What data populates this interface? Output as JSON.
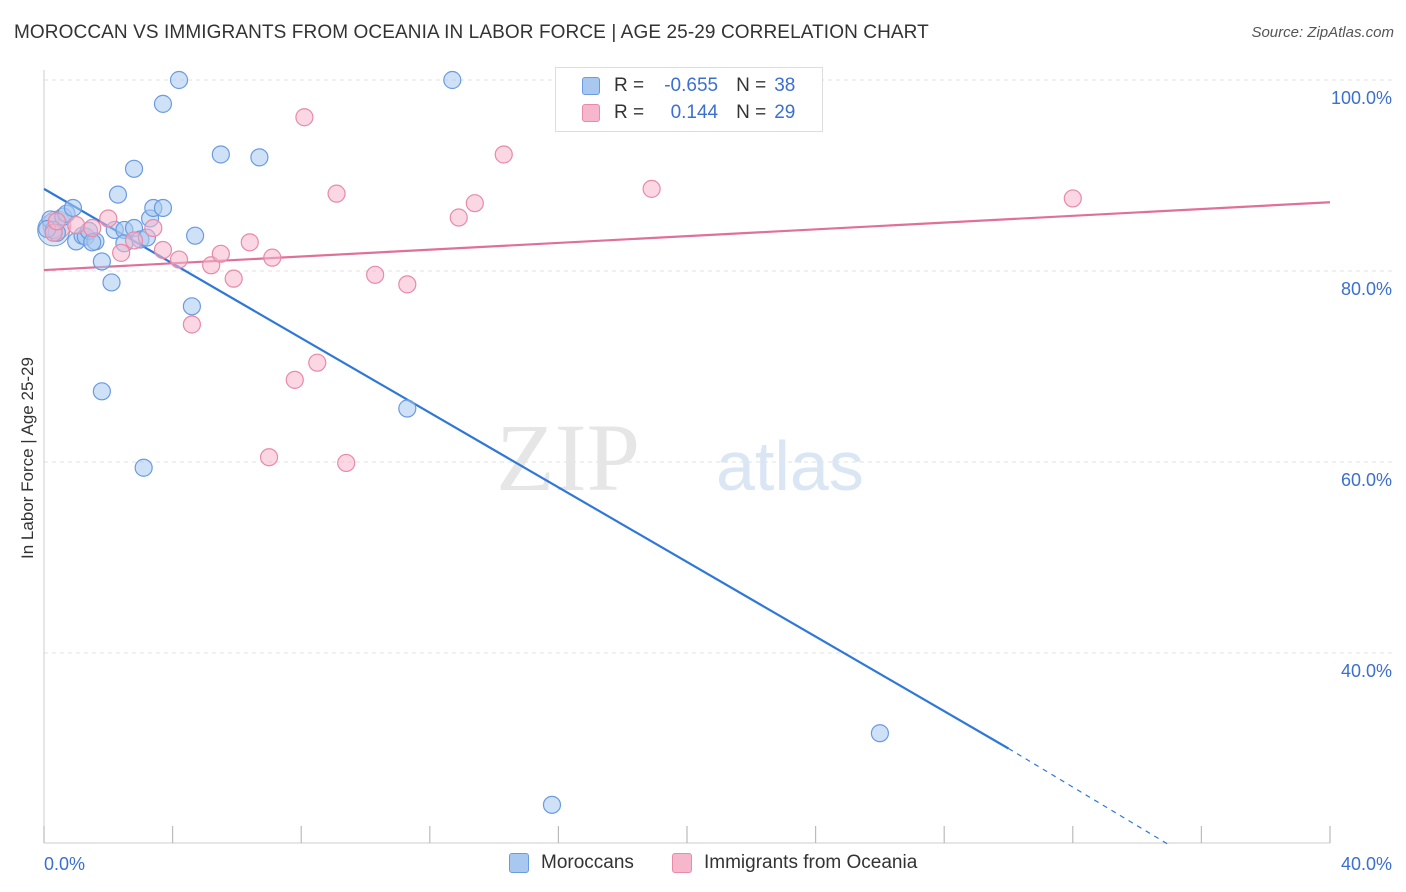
{
  "title": "MOROCCAN VS IMMIGRANTS FROM OCEANIA IN LABOR FORCE | AGE 25-29 CORRELATION CHART",
  "source": "Source: ZipAtlas.com",
  "legend_top": {
    "rows": [
      {
        "r_label": "R =",
        "r_value": "-0.655",
        "n_label": "N =",
        "n_value": "38",
        "color": "#a8c8f0"
      },
      {
        "r_label": "R =",
        "r_value": "0.144",
        "n_label": "N =",
        "n_value": "29",
        "color": "#f6b6cc"
      }
    ]
  },
  "watermark": {
    "zip": "ZIP",
    "atlas": "atlas"
  },
  "colors": {
    "blue_fill": "#a8c8f0",
    "blue_stroke": "#6a9be0",
    "blue_line": "#2f78d8",
    "pink_fill": "#f6b6cc",
    "pink_stroke": "#e88aa8",
    "pink_line": "#e07099",
    "axis_label": "#3b6fd0",
    "grid": "#e0e0e0"
  },
  "chart_data": {
    "type": "scatter",
    "title": "MOROCCAN VS IMMIGRANTS FROM OCEANIA IN LABOR FORCE | AGE 25-29 CORRELATION CHART",
    "xlabel": "",
    "ylabel": "In Labor Force | Age 25-29",
    "xlim": [
      0,
      40
    ],
    "ylim": [
      20,
      102
    ],
    "x_tick_labels": [
      {
        "value": 0,
        "label": "0.0%"
      },
      {
        "value": 40,
        "label": "40.0%"
      }
    ],
    "y_tick_labels": [
      {
        "value": 40,
        "label": "40.0%"
      },
      {
        "value": 60,
        "label": "60.0%"
      },
      {
        "value": 80,
        "label": "80.0%"
      },
      {
        "value": 100,
        "label": "100.0%"
      }
    ],
    "grid": true,
    "legend_position": "bottom",
    "series": [
      {
        "name": "Moroccans",
        "color": "#a8c8f0",
        "points": [
          [
            0.2,
            85.4
          ],
          [
            0.3,
            84.3
          ],
          [
            0.4,
            84.0
          ],
          [
            0.6,
            85.7
          ],
          [
            0.7,
            86.0
          ],
          [
            0.9,
            86.6
          ],
          [
            1.0,
            83.1
          ],
          [
            1.2,
            83.7
          ],
          [
            1.3,
            83.6
          ],
          [
            1.4,
            84.2
          ],
          [
            1.6,
            83.1
          ],
          [
            1.8,
            81.0
          ],
          [
            2.1,
            78.8
          ],
          [
            2.2,
            84.3
          ],
          [
            2.3,
            88.0
          ],
          [
            2.5,
            84.3
          ],
          [
            2.5,
            82.9
          ],
          [
            2.8,
            90.7
          ],
          [
            2.8,
            84.5
          ],
          [
            3.0,
            83.3
          ],
          [
            3.2,
            83.5
          ],
          [
            3.3,
            85.5
          ],
          [
            3.4,
            86.6
          ],
          [
            3.7,
            86.6
          ],
          [
            1.8,
            67.4
          ],
          [
            3.1,
            59.4
          ],
          [
            3.7,
            97.5
          ],
          [
            4.2,
            100.0
          ],
          [
            4.6,
            76.3
          ],
          [
            4.7,
            83.7
          ],
          [
            5.5,
            92.2
          ],
          [
            6.7,
            91.9
          ],
          [
            12.7,
            100.0
          ],
          [
            11.3,
            65.6
          ],
          [
            26.0,
            31.6
          ],
          [
            15.8,
            24.1
          ],
          [
            0.1,
            84.4
          ],
          [
            1.5,
            83.0
          ]
        ]
      },
      {
        "name": "Immigrants from Oceania",
        "color": "#f6b6cc",
        "points": [
          [
            0.3,
            84.0
          ],
          [
            0.4,
            85.2
          ],
          [
            1.0,
            84.8
          ],
          [
            1.5,
            84.5
          ],
          [
            2.0,
            85.5
          ],
          [
            2.4,
            81.9
          ],
          [
            2.8,
            83.2
          ],
          [
            3.4,
            84.5
          ],
          [
            3.7,
            82.2
          ],
          [
            4.2,
            81.2
          ],
          [
            4.6,
            74.4
          ],
          [
            5.2,
            80.6
          ],
          [
            5.5,
            81.8
          ],
          [
            5.9,
            79.2
          ],
          [
            6.4,
            83.0
          ],
          [
            7.1,
            81.4
          ],
          [
            7.0,
            60.5
          ],
          [
            7.8,
            68.6
          ],
          [
            8.1,
            96.1
          ],
          [
            8.5,
            70.4
          ],
          [
            9.1,
            88.1
          ],
          [
            9.4,
            59.9
          ],
          [
            10.3,
            79.6
          ],
          [
            11.3,
            78.6
          ],
          [
            12.9,
            85.6
          ],
          [
            13.4,
            87.1
          ],
          [
            14.3,
            92.2
          ],
          [
            18.9,
            88.6
          ],
          [
            32.0,
            87.6
          ]
        ]
      }
    ],
    "trend_lines": [
      {
        "series": "Moroccans",
        "color": "#2f78d8",
        "x1": 0,
        "y1": 88.6,
        "x2": 30.0,
        "y2": 30.0,
        "dashed_to_x": 35.0,
        "dashed_to_y": 19.9
      },
      {
        "series": "Immigrants from Oceania",
        "color": "#e07099",
        "x1": 0,
        "y1": 80.1,
        "x2": 40.0,
        "y2": 87.2
      }
    ]
  }
}
